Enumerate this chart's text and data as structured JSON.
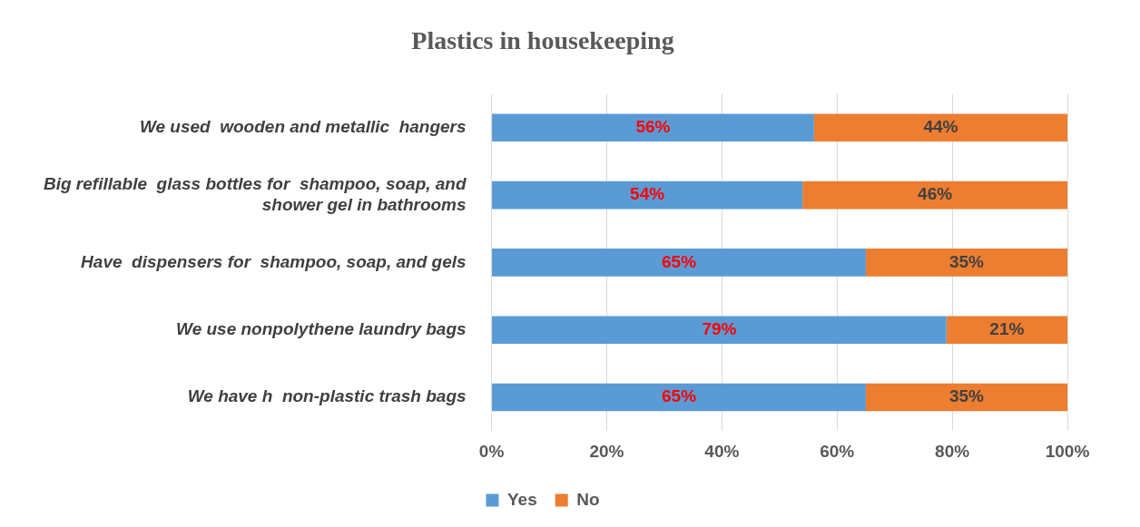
{
  "chart_data": {
    "type": "bar",
    "orientation": "horizontal",
    "stacked": true,
    "title": "Plastics in housekeeping",
    "categories": [
      "We used  wooden and metallic  hangers",
      "Big refillable  glass bottles for  shampoo, soap, and shower gel in bathrooms",
      "Have  dispensers for  shampoo, soap, and gels",
      "We use nonpolythene laundry bags",
      "We have h  non-plastic trash bags"
    ],
    "series": [
      {
        "name": "Yes",
        "color": "#5b9bd5",
        "values": [
          56,
          54,
          65,
          79,
          65
        ],
        "value_labels": [
          "56%",
          "54%",
          "65%",
          "79%",
          "65%"
        ]
      },
      {
        "name": "No",
        "color": "#ed7d31",
        "values": [
          44,
          46,
          35,
          21,
          35
        ],
        "value_labels": [
          "44%",
          "46%",
          "35%",
          "21%",
          "35%"
        ]
      }
    ],
    "xlim": [
      0,
      100
    ],
    "xticks": [
      {
        "value": 0,
        "label": "0%"
      },
      {
        "value": 20,
        "label": "20%"
      },
      {
        "value": 40,
        "label": "40%"
      },
      {
        "value": 60,
        "label": "60%"
      },
      {
        "value": 80,
        "label": "80%"
      },
      {
        "value": 100,
        "label": "100%"
      }
    ],
    "grid": "x",
    "legend": "bottom"
  }
}
